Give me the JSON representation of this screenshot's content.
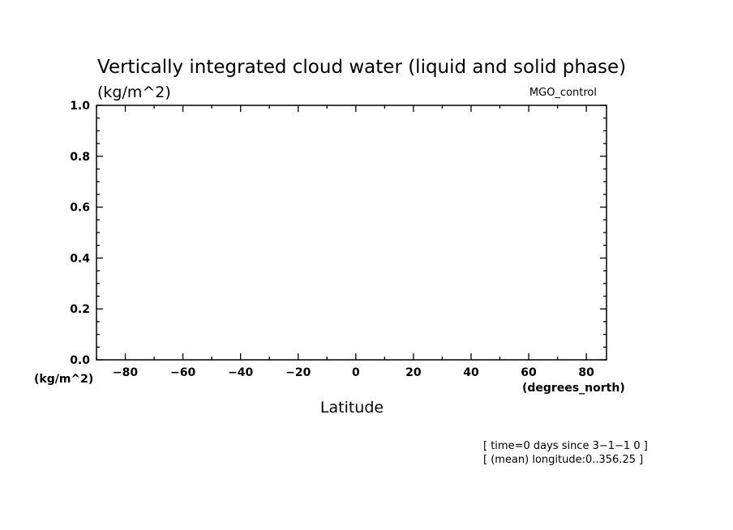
{
  "chart_data": {
    "type": "line",
    "title": "Vertically integrated cloud water (liquid and solid phase)",
    "subtitle": "(kg/m^2)",
    "experiment": "MGO_control",
    "xlabel": "Latitude",
    "x_unit": "(degrees_north)",
    "y_unit": "(kg/m^2)",
    "xlim": [
      -90,
      87
    ],
    "ylim": [
      0.0,
      1.0
    ],
    "x_ticks": [
      -80,
      -60,
      -40,
      -20,
      0,
      20,
      40,
      60,
      80
    ],
    "x_tick_labels": [
      "−80",
      "−60",
      "−40",
      "−20",
      "0",
      "20",
      "40",
      "60",
      "80"
    ],
    "y_ticks": [
      0.0,
      0.2,
      0.4,
      0.6,
      0.8,
      1.0
    ],
    "y_tick_labels": [
      "0.0",
      "0.2",
      "0.4",
      "0.6",
      "0.8",
      "1.0"
    ],
    "series": [],
    "grid": false,
    "annotations": [
      "[ time=0 days since 3−1−1 0 ]",
      "[ (mean) longitude:0..356.25 ]"
    ]
  }
}
